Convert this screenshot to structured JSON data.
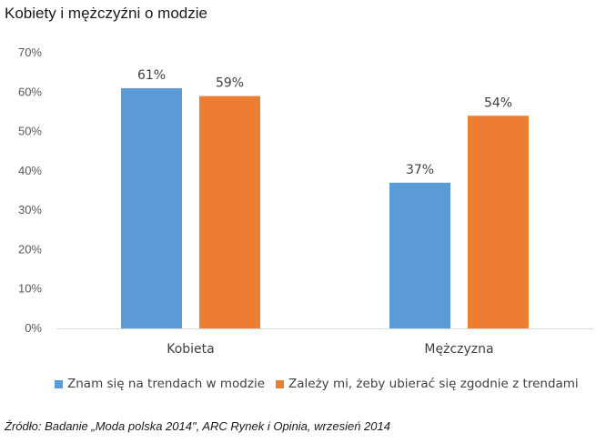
{
  "title": "Kobiety i mężczyźni o modzie",
  "source": "Źródło: Badanie „Moda polska 2014\", ARC Rynek i Opinia, wrzesień 2014",
  "colors": {
    "series1": "#5b9bd5",
    "series2": "#ed7d31",
    "axis": "#d9d9d9"
  },
  "chart_data": {
    "type": "bar",
    "categories": [
      "Kobieta",
      "Mężczyzna"
    ],
    "series": [
      {
        "name": "Znam się na trendach w modzie",
        "values": [
          61,
          37
        ],
        "labels": [
          "61%",
          "37%"
        ]
      },
      {
        "name": "Zależy mi, żeby ubierać się zgodnie z trendami",
        "values": [
          59,
          54
        ],
        "labels": [
          "59%",
          "54%"
        ]
      }
    ],
    "ylim": [
      0,
      70
    ],
    "yticks": [
      "0%",
      "10%",
      "20%",
      "30%",
      "40%",
      "50%",
      "60%",
      "70%"
    ],
    "grid": false,
    "legend": "bottom"
  }
}
